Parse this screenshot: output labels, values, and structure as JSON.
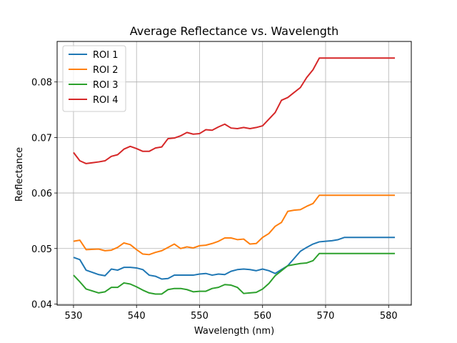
{
  "chart_data": {
    "type": "line",
    "title": "Average Reflectance vs. Wavelength",
    "xlabel": "Wavelength (nm)",
    "ylabel": "Reflectance",
    "xlim": [
      527.4,
      583.6
    ],
    "ylim": [
      0.0398,
      0.0873
    ],
    "xticks": [
      530,
      540,
      550,
      560,
      570,
      580
    ],
    "yticks": [
      0.04,
      0.05,
      0.06,
      0.07,
      0.08
    ],
    "ytick_labels": [
      "0.04",
      "0.05",
      "0.06",
      "0.07",
      "0.08"
    ],
    "grid": true,
    "legend_position": "top-left",
    "x": [
      530,
      531,
      532,
      534,
      535,
      536,
      537,
      538,
      539,
      540,
      541,
      542,
      543,
      544,
      545,
      546,
      547,
      548,
      549,
      550,
      551,
      552,
      553,
      554,
      555,
      556,
      557,
      558,
      559,
      560,
      561,
      562,
      563,
      564,
      565,
      566,
      567,
      568,
      569,
      570,
      571,
      572,
      573,
      574,
      575,
      576,
      577,
      578,
      579,
      580,
      581
    ],
    "series": [
      {
        "name": "ROI 1",
        "color": "#1f77b4",
        "values": [
          0.0484,
          0.048,
          0.0461,
          0.0453,
          0.0451,
          0.0463,
          0.0461,
          0.0466,
          0.0466,
          0.0465,
          0.0462,
          0.0452,
          0.045,
          0.0445,
          0.0446,
          0.0452,
          0.0452,
          0.0452,
          0.0452,
          0.0454,
          0.0455,
          0.0452,
          0.0454,
          0.0453,
          0.0459,
          0.0462,
          0.0463,
          0.0462,
          0.046,
          0.0463,
          0.046,
          0.0455,
          0.0462,
          0.0469,
          0.0482,
          0.0495,
          0.0502,
          0.0508,
          0.0512,
          0.0513,
          0.0514,
          0.0516,
          0.052,
          0.052,
          0.052,
          0.052,
          0.052,
          0.052,
          0.052,
          0.052,
          0.052
        ]
      },
      {
        "name": "ROI 2",
        "color": "#ff7f0e",
        "values": [
          0.0513,
          0.0515,
          0.0498,
          0.0499,
          0.0496,
          0.0497,
          0.0502,
          0.051,
          0.0507,
          0.0498,
          0.049,
          0.0489,
          0.0493,
          0.0496,
          0.0502,
          0.0508,
          0.05,
          0.0503,
          0.0501,
          0.0505,
          0.0506,
          0.0509,
          0.0513,
          0.0519,
          0.0519,
          0.0516,
          0.0517,
          0.0508,
          0.0509,
          0.052,
          0.0527,
          0.054,
          0.0547,
          0.0567,
          0.0569,
          0.057,
          0.0576,
          0.0581,
          0.0596,
          0.0596,
          0.0596,
          0.0596,
          0.0596,
          0.0596,
          0.0596,
          0.0596,
          0.0596,
          0.0596,
          0.0596,
          0.0596,
          0.0596
        ]
      },
      {
        "name": "ROI 3",
        "color": "#2ca02c",
        "values": [
          0.0452,
          0.044,
          0.0427,
          0.042,
          0.0422,
          0.043,
          0.043,
          0.0438,
          0.0436,
          0.0431,
          0.0425,
          0.042,
          0.0418,
          0.0418,
          0.0426,
          0.0428,
          0.0428,
          0.0426,
          0.0422,
          0.0423,
          0.0423,
          0.0428,
          0.043,
          0.0435,
          0.0434,
          0.043,
          0.0419,
          0.042,
          0.0421,
          0.0427,
          0.0437,
          0.0451,
          0.046,
          0.0469,
          0.0471,
          0.0473,
          0.0474,
          0.0478,
          0.0491,
          0.0491,
          0.0491,
          0.0491,
          0.0491,
          0.0491,
          0.0491,
          0.0491,
          0.0491,
          0.0491,
          0.0491,
          0.0491,
          0.0491
        ]
      },
      {
        "name": "ROI 4",
        "color": "#d62728",
        "values": [
          0.0673,
          0.0658,
          0.0653,
          0.0656,
          0.0658,
          0.0666,
          0.0669,
          0.0679,
          0.0684,
          0.068,
          0.0675,
          0.0675,
          0.0681,
          0.0683,
          0.0698,
          0.0699,
          0.0703,
          0.0709,
          0.0706,
          0.0707,
          0.0714,
          0.0713,
          0.0719,
          0.0724,
          0.0717,
          0.0716,
          0.0718,
          0.0716,
          0.0718,
          0.0721,
          0.0733,
          0.0745,
          0.0767,
          0.0772,
          0.0781,
          0.079,
          0.0808,
          0.0822,
          0.0843,
          0.0843,
          0.0843,
          0.0843,
          0.0843,
          0.0843,
          0.0843,
          0.0843,
          0.0843,
          0.0843,
          0.0843,
          0.0843,
          0.0843
        ]
      }
    ]
  }
}
